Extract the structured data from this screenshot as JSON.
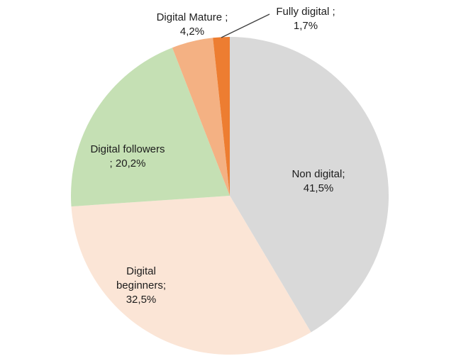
{
  "chart_data": {
    "type": "pie",
    "title": "",
    "categories": [
      "Non digital",
      "Digital beginners",
      "Digital followers",
      "Digital Mature",
      "Fully digital"
    ],
    "values": [
      41.5,
      32.5,
      20.2,
      4.2,
      1.7
    ],
    "value_labels": [
      "41,5%",
      "32,5%",
      "20,2%",
      "4,2%",
      "1,7%"
    ],
    "decimal_separator": ",",
    "colors": [
      "#d9d9d9",
      "#fbe5d6",
      "#c5e0b4",
      "#f4b183",
      "#ed7d31"
    ],
    "start_angle_deg": 0,
    "direction": "clockwise",
    "legend_position": "none",
    "grid": false,
    "background": "#ffffff",
    "leader_line_color": "#3f3f3f"
  },
  "labels": {
    "non_digital": {
      "lines": [
        "Non digital;",
        "41,5%"
      ]
    },
    "beginners": {
      "lines": [
        "Digital",
        "beginners;",
        "32,5%"
      ]
    },
    "followers": {
      "lines": [
        "Digital followers",
        "; 20,2%"
      ]
    },
    "mature": {
      "lines": [
        "Digital Mature ;",
        "4,2%"
      ]
    },
    "fully": {
      "lines": [
        "Fully digital ;",
        "1,7%"
      ]
    }
  }
}
